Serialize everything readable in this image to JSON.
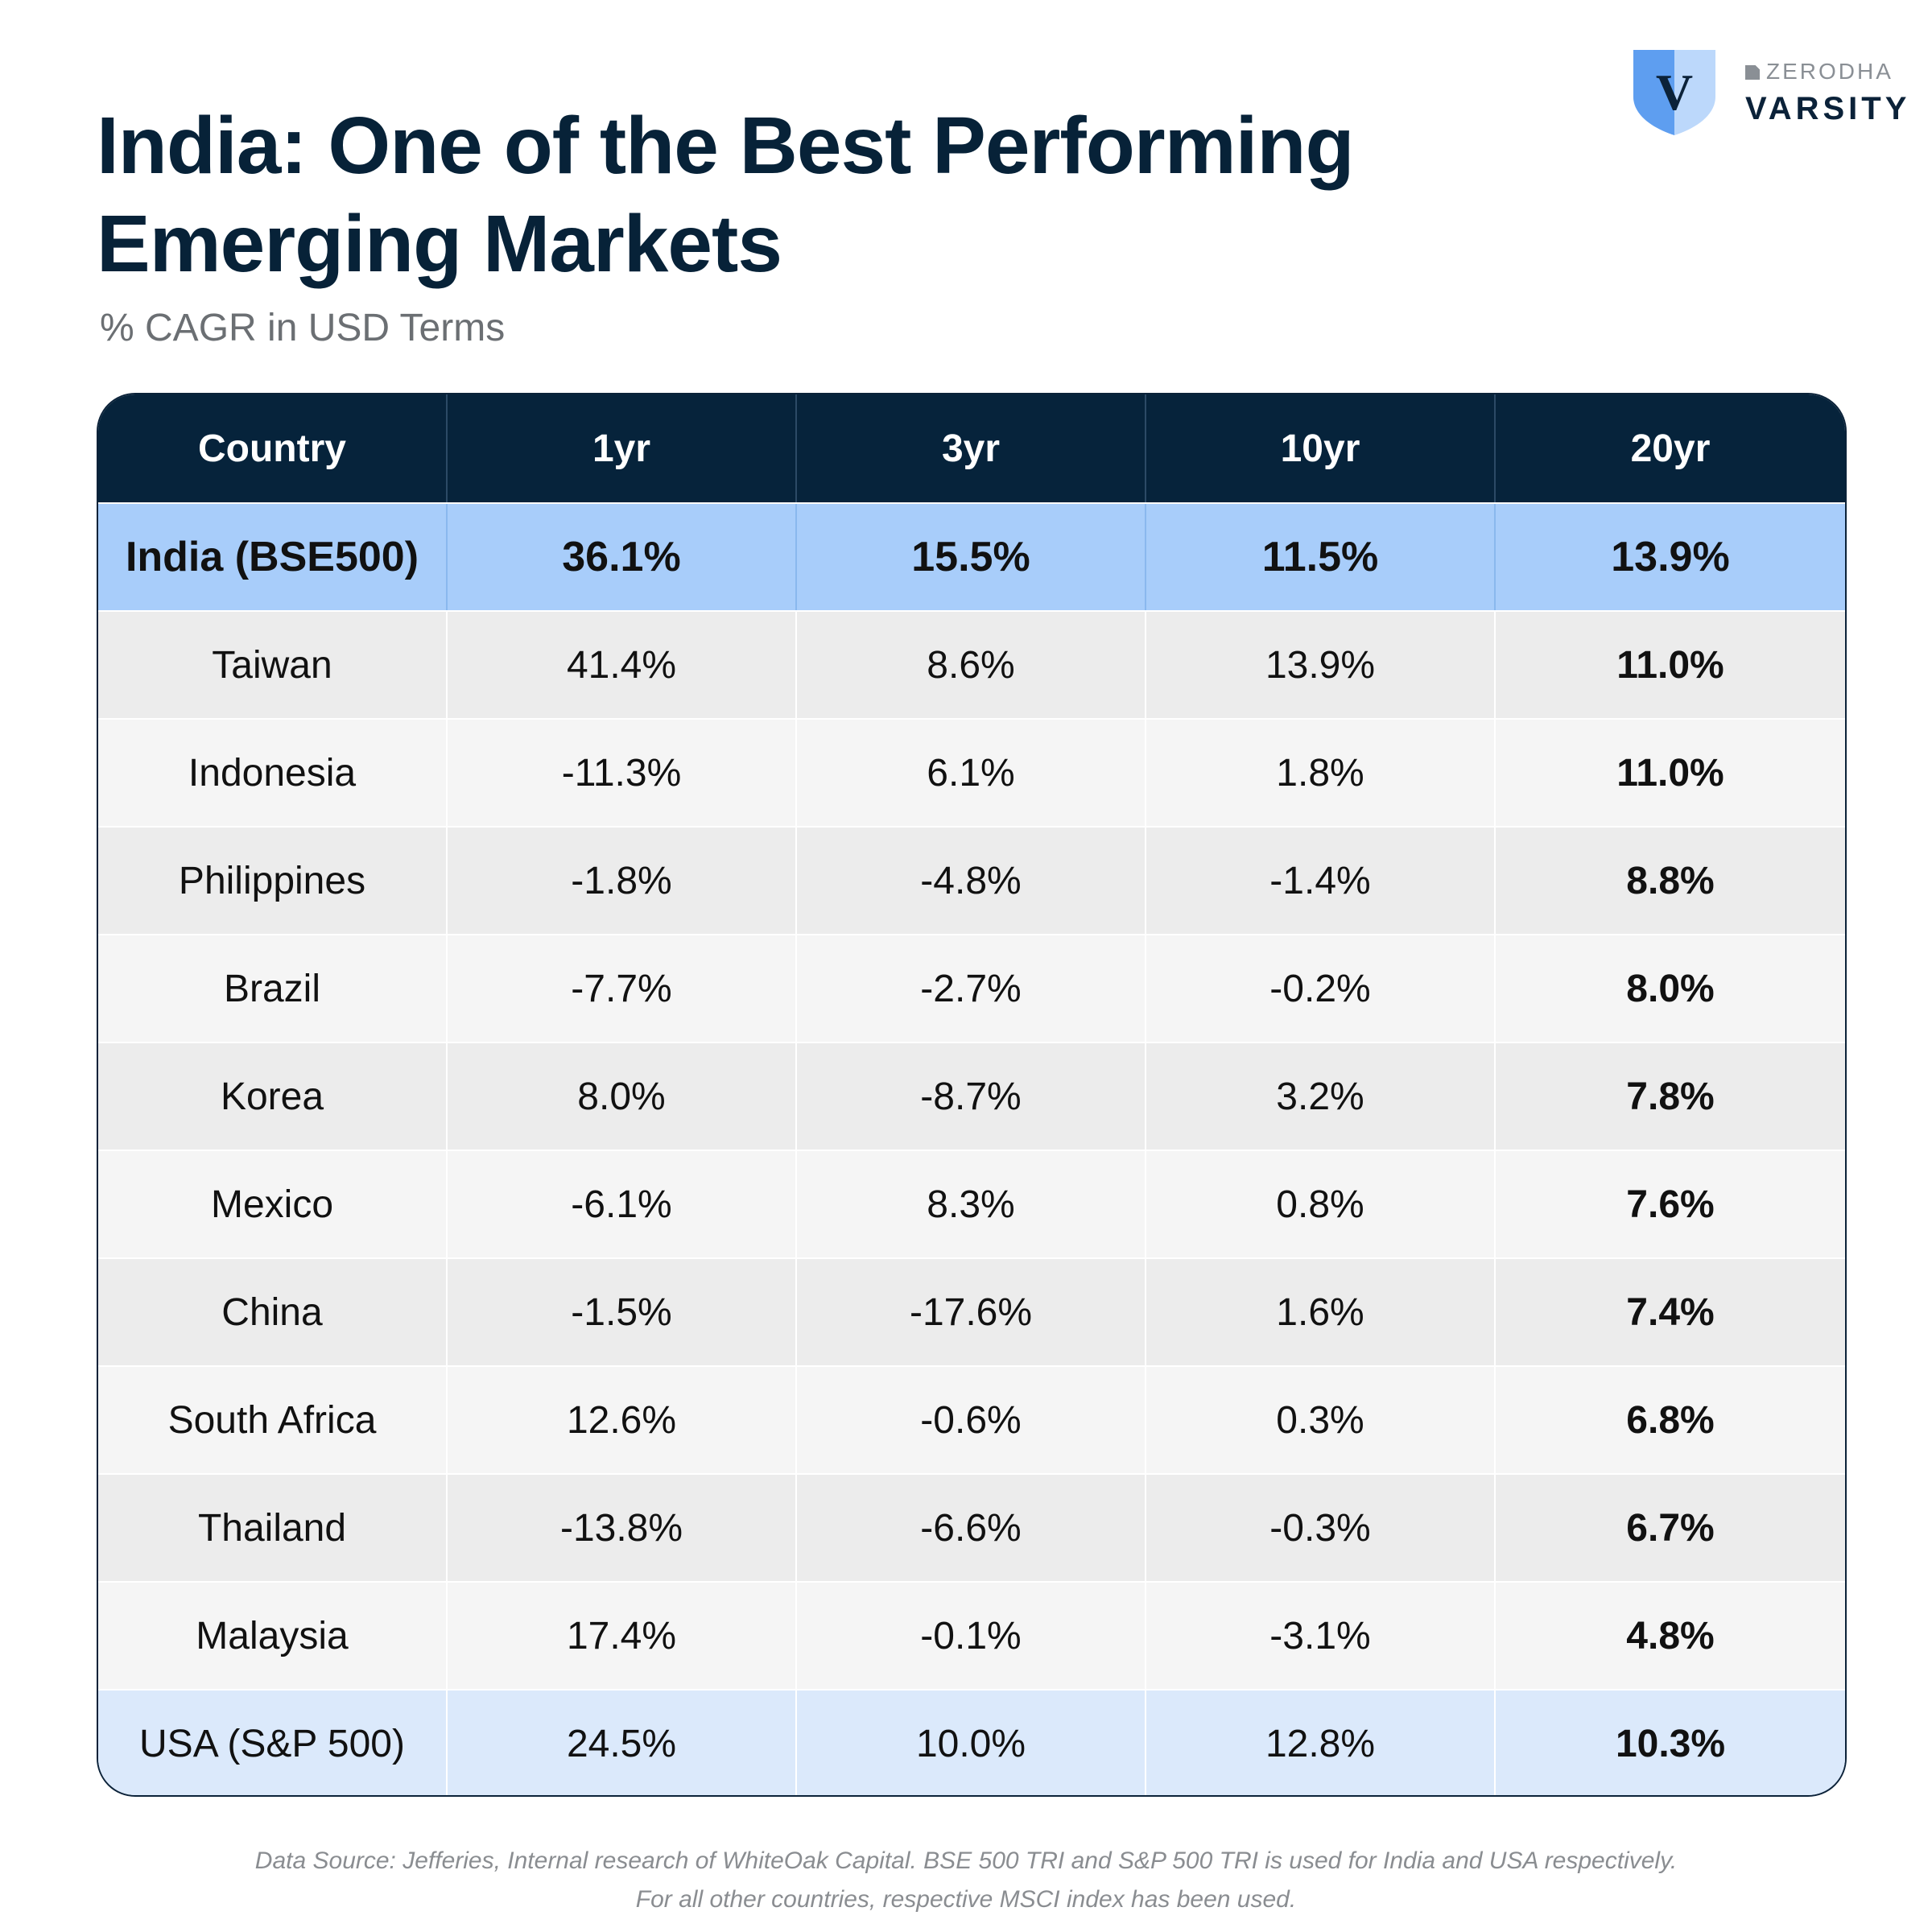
{
  "header": {
    "title_line1": "India: One of the Best Performing",
    "title_line2": "Emerging Markets",
    "subtitle": "% CAGR in USD Terms"
  },
  "brand": {
    "icon": "shield-v-logo",
    "top": "ZERODHA",
    "main": "VARSITY",
    "colors": {
      "shield_light": "#bcd8fb",
      "shield_dark": "#5e9ef0",
      "letter": "#0b2239"
    }
  },
  "colors": {
    "header_bg": "#06233b",
    "highlight_row": "#a8cdfa",
    "usa_row": "#dbe9fb",
    "row_odd": "#ececec",
    "row_even": "#f5f5f5"
  },
  "chart_data": {
    "type": "table",
    "title": "India: One of the Best Performing Emerging Markets",
    "subtitle": "% CAGR in USD Terms",
    "columns": [
      "Country",
      "1yr",
      "3yr",
      "10yr",
      "20yr"
    ],
    "rows": [
      [
        "India (BSE500)",
        "36.1%",
        "15.5%",
        "11.5%",
        "13.9%"
      ],
      [
        "Taiwan",
        "41.4%",
        "8.6%",
        "13.9%",
        "11.0%"
      ],
      [
        "Indonesia",
        "-11.3%",
        "6.1%",
        "1.8%",
        "11.0%"
      ],
      [
        "Philippines",
        "-1.8%",
        "-4.8%",
        "-1.4%",
        "8.8%"
      ],
      [
        "Brazil",
        "-7.7%",
        "-2.7%",
        "-0.2%",
        "8.0%"
      ],
      [
        "Korea",
        "8.0%",
        "-8.7%",
        "3.2%",
        "7.8%"
      ],
      [
        "Mexico",
        "-6.1%",
        "8.3%",
        "0.8%",
        "7.6%"
      ],
      [
        "China",
        "-1.5%",
        "-17.6%",
        "1.6%",
        "7.4%"
      ],
      [
        "South Africa",
        "12.6%",
        "-0.6%",
        "0.3%",
        "6.8%"
      ],
      [
        "Thailand",
        "-13.8%",
        "-6.6%",
        "-0.3%",
        "6.7%"
      ],
      [
        "Malaysia",
        "17.4%",
        "-0.1%",
        "-3.1%",
        "4.8%"
      ],
      [
        "USA (S&P 500)",
        "24.5%",
        "10.0%",
        "12.8%",
        "10.3%"
      ]
    ]
  },
  "footnote": {
    "line1": "Data Source: Jefferies, Internal research of WhiteOak Capital. BSE 500 TRI and S&P 500 TRI is used for India and USA respectively.",
    "line2": "For all other countries, respective MSCI index has been used."
  }
}
